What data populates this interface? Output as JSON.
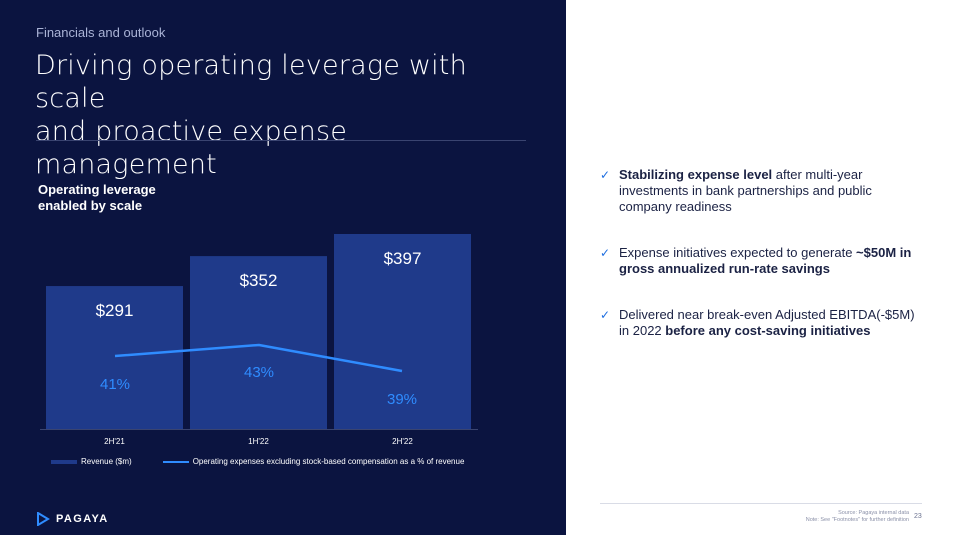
{
  "header": {
    "eyebrow": "Financials and outlook",
    "title_line1": "Driving operating leverage with scale",
    "title_line2": "and proactive expense management"
  },
  "chart_title_line1": "Operating leverage",
  "chart_title_line2": "enabled by scale",
  "chart_data": {
    "type": "bar",
    "categories": [
      "2H'21",
      "1H'22",
      "2H'22"
    ],
    "series": [
      {
        "name": "Revenue ($m)",
        "values": [
          291,
          352,
          397
        ],
        "labels": [
          "$291",
          "$352",
          "$397"
        ],
        "color": "#1f3a8a"
      },
      {
        "name": "Operating expenses excluding stock-based compensation as a % of revenue",
        "values": [
          41,
          43,
          39
        ],
        "labels": [
          "41%",
          "43%",
          "39%"
        ],
        "color": "#2f8cff"
      }
    ],
    "ylim": [
      0,
      397
    ],
    "legend": "bottom"
  },
  "legend": {
    "revenue": "Revenue ($m)",
    "opex": "Operating expenses excluding stock-based compensation as a % of revenue"
  },
  "logo": {
    "text": "PAGAYA",
    "icon": "pagaya-logo-icon"
  },
  "bullets": [
    {
      "bold_prefix": "Stabilizing expense level",
      "text": " after multi-year investments in bank partnerships and public company readiness",
      "bold_suffix": ""
    },
    {
      "bold_prefix": "",
      "text": "Expense initiatives expected to generate ",
      "bold_suffix": "~$50M in gross annualized run-rate savings"
    },
    {
      "bold_prefix": "",
      "text": "Delivered near break-even Adjusted EBITDA(-$5M) in 2022 ",
      "bold_suffix": "before any cost-saving initiatives"
    }
  ],
  "check_icon": "✓",
  "footer": {
    "source_line1": "Source: Pagaya internal data",
    "source_line2": "Note: See \"Footnotes\" for further definition",
    "page": "23"
  }
}
